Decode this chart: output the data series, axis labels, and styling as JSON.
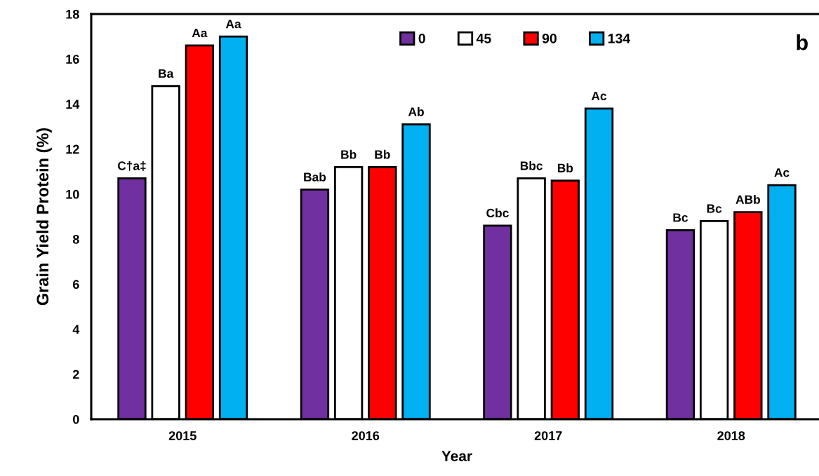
{
  "chart_data": {
    "type": "bar",
    "categories": [
      "2015",
      "2016",
      "2017",
      "2018"
    ],
    "xlabel": "Year",
    "ylabel": "Grain Yield Protein (%)",
    "ylim": [
      0,
      18
    ],
    "yticks": [
      0,
      2,
      4,
      6,
      8,
      10,
      12,
      14,
      16,
      18
    ],
    "grid": false,
    "legend": "top",
    "annotations": [
      "b"
    ],
    "series": [
      {
        "name": "0",
        "color": "#7030a0",
        "values": [
          10.7,
          10.2,
          8.6,
          8.4
        ],
        "value_labels": [
          "C†a‡",
          "Bab",
          "Cbc",
          "Bc"
        ]
      },
      {
        "name": "45",
        "color": "#ffffff",
        "values": [
          14.8,
          11.2,
          10.7,
          8.8
        ],
        "value_labels": [
          "Ba",
          "Bb",
          "Bbc",
          "Bc"
        ]
      },
      {
        "name": "90",
        "color": "#ff0000",
        "values": [
          16.6,
          11.2,
          10.6,
          9.2
        ],
        "value_labels": [
          "Aa",
          "Bb",
          "Bb",
          "ABb"
        ]
      },
      {
        "name": "134",
        "color": "#00b0f0",
        "values": [
          17.0,
          13.1,
          13.8,
          10.4
        ],
        "value_labels": [
          "Aa",
          "Ab",
          "Ac",
          "Ac"
        ]
      }
    ]
  }
}
